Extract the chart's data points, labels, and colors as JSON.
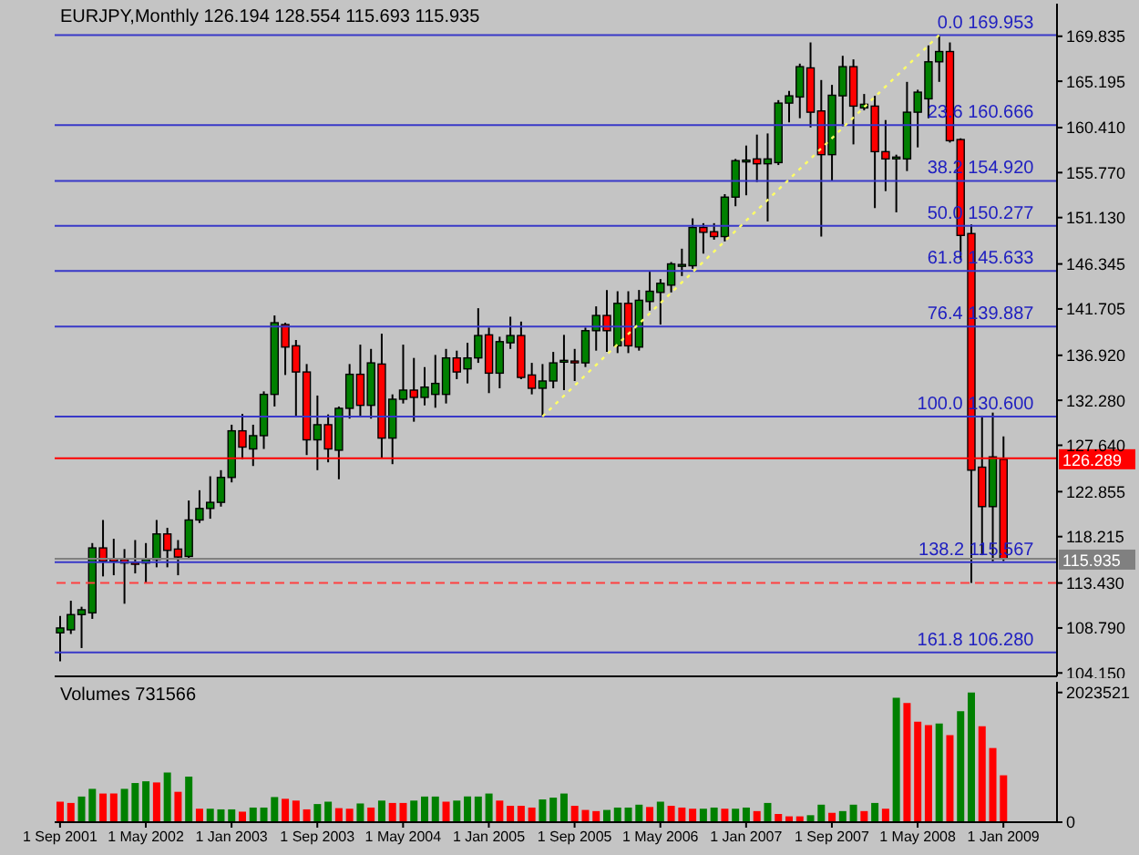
{
  "chart_data": [
    {
      "type": "candlestick",
      "title": "EURJPY,Monthly 126.194 128.554 115.693 115.935",
      "x": [
        "2001-09",
        "2001-10",
        "2001-11",
        "2001-12",
        "2002-01",
        "2002-02",
        "2002-03",
        "2002-04",
        "2002-05",
        "2002-06",
        "2002-07",
        "2002-08",
        "2002-09",
        "2002-10",
        "2002-11",
        "2002-12",
        "2003-01",
        "2003-02",
        "2003-03",
        "2003-04",
        "2003-05",
        "2003-06",
        "2003-07",
        "2003-08",
        "2003-09",
        "2003-10",
        "2003-11",
        "2003-12",
        "2004-01",
        "2004-02",
        "2004-03",
        "2004-04",
        "2004-05",
        "2004-06",
        "2004-07",
        "2004-08",
        "2004-09",
        "2004-10",
        "2004-11",
        "2004-12",
        "2005-01",
        "2005-02",
        "2005-03",
        "2005-04",
        "2005-05",
        "2005-06",
        "2005-07",
        "2005-08",
        "2005-09",
        "2005-10",
        "2005-11",
        "2005-12",
        "2006-01",
        "2006-02",
        "2006-03",
        "2006-04",
        "2006-05",
        "2006-06",
        "2006-07",
        "2006-08",
        "2006-09",
        "2006-10",
        "2006-11",
        "2006-12",
        "2007-01",
        "2007-02",
        "2007-03",
        "2007-04",
        "2007-05",
        "2007-06",
        "2007-07",
        "2007-08",
        "2007-09",
        "2007-10",
        "2007-11",
        "2007-12",
        "2008-01",
        "2008-02",
        "2008-03",
        "2008-04",
        "2008-05",
        "2008-06",
        "2008-07",
        "2008-08",
        "2008-09",
        "2008-10",
        "2008-11",
        "2008-12",
        "2009-01"
      ],
      "ohlc": [
        [
          108.29,
          110.04,
          105.35,
          108.79
        ],
        [
          108.6,
          111.6,
          108.17,
          110.17
        ],
        [
          110.17,
          110.98,
          106.72,
          110.67
        ],
        [
          110.35,
          117.55,
          109.73,
          117.05
        ],
        [
          117.05,
          119.93,
          114.11,
          115.67
        ],
        [
          115.92,
          117.99,
          114.23,
          115.67
        ],
        [
          115.86,
          116.93,
          111.29,
          115.49
        ],
        [
          115.55,
          117.86,
          114.42,
          115.5
        ],
        [
          115.49,
          117.55,
          113.43,
          115.86
        ],
        [
          115.86,
          119.93,
          115.05,
          118.49
        ],
        [
          118.49,
          119.12,
          115.05,
          116.8
        ],
        [
          116.93,
          117.86,
          114.23,
          116.11
        ],
        [
          116.17,
          121.94,
          115.92,
          119.93
        ],
        [
          119.93,
          123.0,
          119.62,
          121.12
        ],
        [
          121.12,
          124.44,
          120.06,
          121.75
        ],
        [
          121.75,
          125.07,
          121.31,
          124.32
        ],
        [
          124.32,
          129.76,
          123.81,
          129.13
        ],
        [
          129.13,
          130.89,
          126.19,
          127.45
        ],
        [
          127.26,
          129.76,
          125.5,
          128.63
        ],
        [
          128.63,
          133.2,
          127.26,
          132.89
        ],
        [
          132.89,
          141.03,
          131.64,
          140.28
        ],
        [
          140.09,
          140.28,
          134.89,
          137.77
        ],
        [
          137.9,
          138.5,
          130.51,
          135.2
        ],
        [
          135.2,
          136.02,
          126.63,
          128.2
        ],
        [
          128.2,
          132.77,
          125.07,
          129.76
        ],
        [
          129.76,
          130.82,
          125.88,
          127.26
        ],
        [
          127.13,
          131.64,
          124.13,
          131.45
        ],
        [
          131.45,
          136.02,
          130.39,
          134.96
        ],
        [
          134.96,
          138.02,
          130.51,
          131.76
        ],
        [
          131.76,
          137.58,
          130.39,
          136.14
        ],
        [
          136.02,
          139.15,
          126.32,
          128.38
        ],
        [
          128.38,
          132.89,
          125.69,
          132.39
        ],
        [
          132.39,
          138.02,
          131.95,
          133.33
        ],
        [
          133.33,
          136.65,
          130.07,
          132.58
        ],
        [
          132.58,
          135.71,
          131.76,
          133.64
        ],
        [
          132.89,
          136.96,
          131.51,
          134.02
        ],
        [
          132.89,
          137.58,
          131.95,
          136.65
        ],
        [
          136.65,
          137.4,
          134.46,
          135.2
        ],
        [
          135.52,
          138.21,
          134.02,
          136.65
        ],
        [
          136.65,
          141.78,
          136.14,
          138.96
        ],
        [
          139.03,
          139.78,
          133.02,
          135.08
        ],
        [
          135.08,
          138.84,
          133.52,
          138.33
        ],
        [
          138.21,
          140.9,
          137.58,
          138.96
        ],
        [
          138.96,
          140.4,
          134.46,
          134.64
        ],
        [
          134.89,
          136.14,
          132.89,
          133.52
        ],
        [
          133.52,
          136.02,
          130.6,
          134.27
        ],
        [
          134.27,
          137.27,
          133.52,
          136.14
        ],
        [
          136.27,
          139.03,
          133.33,
          136.4
        ],
        [
          136.33,
          137.58,
          134.27,
          136.27
        ],
        [
          136.14,
          139.78,
          135.71,
          139.46
        ],
        [
          139.46,
          141.97,
          137.4,
          141.03
        ],
        [
          141.03,
          143.66,
          137.27,
          139.46
        ],
        [
          137.9,
          143.53,
          137.15,
          142.28
        ],
        [
          142.28,
          143.53,
          137.15,
          137.9
        ],
        [
          137.77,
          143.66,
          137.4,
          142.6
        ],
        [
          142.47,
          145.54,
          141.53,
          143.53
        ],
        [
          143.41,
          144.79,
          140.09,
          144.35
        ],
        [
          144.16,
          146.54,
          143.41,
          146.35
        ],
        [
          146.16,
          147.92,
          145.1,
          146.29
        ],
        [
          146.16,
          151.05,
          145.85,
          150.11
        ],
        [
          150.11,
          150.55,
          147.41,
          149.61
        ],
        [
          149.67,
          150.55,
          148.85,
          149.17
        ],
        [
          149.17,
          153.55,
          148.67,
          153.24
        ],
        [
          153.24,
          157.18,
          152.3,
          157.0
        ],
        [
          156.93,
          158.56,
          153.43,
          157.06
        ],
        [
          157.18,
          159.69,
          154.8,
          156.68
        ],
        [
          156.68,
          159.81,
          150.73,
          157.18
        ],
        [
          156.8,
          163.25,
          156.55,
          162.94
        ],
        [
          162.94,
          164.19,
          160.94,
          163.69
        ],
        [
          163.57,
          167.01,
          161.38,
          166.7
        ],
        [
          166.57,
          169.2,
          160.43,
          162.0
        ],
        [
          162.13,
          165.32,
          149.17,
          157.62
        ],
        [
          157.62,
          164.82,
          154.93,
          163.75
        ],
        [
          163.69,
          167.82,
          160.56,
          166.7
        ],
        [
          166.7,
          167.45,
          158.68,
          162.63
        ],
        [
          162.44,
          163.88,
          162.19,
          162.82
        ],
        [
          162.63,
          163.69,
          152.11,
          157.93
        ],
        [
          157.93,
          161.19,
          153.86,
          157.18
        ],
        [
          157.24,
          157.62,
          151.67,
          157.37
        ],
        [
          157.18,
          165.13,
          155.93,
          162.0
        ],
        [
          162.0,
          164.32,
          158.37,
          164.07
        ],
        [
          163.38,
          168.89,
          161.38,
          167.2
        ],
        [
          167.2,
          169.953,
          165.13,
          168.26
        ],
        [
          168.26,
          169.2,
          158.87,
          159.06
        ],
        [
          159.18,
          159.31,
          146.79,
          149.29
        ],
        [
          149.48,
          150.42,
          113.43,
          125.07
        ],
        [
          125.38,
          130.7,
          116.3,
          121.31
        ],
        [
          121.31,
          131.01,
          115.67,
          126.44
        ],
        [
          126.194,
          128.554,
          115.693,
          115.935
        ]
      ],
      "colors": [
        "#008000",
        "#008000",
        "#008000",
        "#008000",
        "#ff0000",
        "#ff0000",
        "#ff0000",
        "#ff0000",
        "#008000",
        "#008000",
        "#ff0000",
        "#ff0000",
        "#008000",
        "#008000",
        "#008000",
        "#008000",
        "#008000",
        "#ff0000",
        "#008000",
        "#008000",
        "#008000",
        "#ff0000",
        "#ff0000",
        "#ff0000",
        "#008000",
        "#ff0000",
        "#008000",
        "#008000",
        "#ff0000",
        "#008000",
        "#ff0000",
        "#008000",
        "#008000",
        "#ff0000",
        "#008000",
        "#008000",
        "#008000",
        "#ff0000",
        "#008000",
        "#008000",
        "#ff0000",
        "#008000",
        "#008000",
        "#ff0000",
        "#ff0000",
        "#008000",
        "#008000",
        "#008000",
        "#ff0000",
        "#008000",
        "#008000",
        "#ff0000",
        "#008000",
        "#ff0000",
        "#008000",
        "#008000",
        "#008000",
        "#008000",
        "#008000",
        "#008000",
        "#ff0000",
        "#ff0000",
        "#008000",
        "#008000",
        "#008000",
        "#ff0000",
        "#008000",
        "#008000",
        "#008000",
        "#008000",
        "#ff0000",
        "#ff0000",
        "#008000",
        "#008000",
        "#ff0000",
        "#008000",
        "#ff0000",
        "#ff0000",
        "#008000",
        "#008000",
        "#008000",
        "#008000",
        "#008000",
        "#ff0000",
        "#ff0000",
        "#ff0000",
        "#ff0000",
        "#008000",
        "#ff0000"
      ],
      "series": [
        {
          "type": "line",
          "x": [
            "2005-06",
            "2008-07"
          ],
          "values": [
            130.6,
            169.953
          ],
          "color": "#ffff66",
          "line_style": "dotted"
        }
      ],
      "xlim": [
        "2001-08-16",
        "2009-06"
      ],
      "ylim": [
        103.8,
        173.2
      ],
      "yticks": [
        {
          "value": 104.15,
          "label": "104.150"
        },
        {
          "value": 108.79,
          "label": "108.790"
        },
        {
          "value": 113.43,
          "label": "113.430"
        },
        118.215,
        122.855,
        {
          "value": 127.64,
          "label": "127.640"
        },
        {
          "value": 132.28,
          "label": "132.280"
        },
        {
          "value": 136.92,
          "label": "136.920"
        },
        141.705,
        146.345,
        {
          "value": 151.13,
          "label": "151.130"
        },
        {
          "value": 155.77,
          "label": "155.770"
        },
        {
          "value": 160.41,
          "label": "160.410"
        },
        165.195,
        169.835
      ],
      "tick_labels": "y",
      "ref_lines": [
        {
          "axis": "y",
          "value": 169.953,
          "color": "#3838c8"
        },
        {
          "axis": "y",
          "value": 160.666,
          "color": "#3838c8"
        },
        {
          "axis": "y",
          "value": 154.92,
          "color": "#3838c8"
        },
        {
          "axis": "y",
          "value": 150.277,
          "color": "#3838c8"
        },
        {
          "axis": "y",
          "value": 145.633,
          "color": "#3838c8"
        },
        {
          "axis": "y",
          "value": 139.887,
          "color": "#3838c8"
        },
        {
          "axis": "y",
          "value": 130.6,
          "color": "#3838c8"
        },
        {
          "axis": "y",
          "value": 115.567,
          "color": "#3838c8"
        },
        {
          "axis": "y",
          "value": 106.28,
          "color": "#3838c8"
        },
        {
          "axis": "y",
          "value": 126.289,
          "label": "126.289",
          "color": "#ff0000"
        },
        {
          "axis": "y",
          "value": 115.935,
          "label": "115.935",
          "color": "#808080"
        },
        {
          "axis": "y",
          "value": 113.43,
          "color": "#ff4040",
          "line_style": "dashed"
        }
      ],
      "annotations": [
        {
          "text": "0.0 169.953",
          "x": "2009-04",
          "y": 169.953
        },
        {
          "text": "23.6 160.666",
          "x": "2009-04",
          "y": 160.666
        },
        {
          "text": "38.2 154.920",
          "x": "2009-04",
          "y": 154.92
        },
        {
          "text": "50.0 150.277",
          "x": "2009-04",
          "y": 150.277
        },
        {
          "text": "61.8 145.633",
          "x": "2009-04",
          "y": 145.633
        },
        {
          "text": "76.4 139.887",
          "x": "2009-04",
          "y": 139.887
        },
        {
          "text": "100.0 130.600",
          "x": "2009-04",
          "y": 130.6
        },
        {
          "text": "138.2 115.567",
          "x": "2009-04",
          "y": 115.567
        },
        {
          "text": "161.8 106.280",
          "x": "2009-04",
          "y": 106.28
        }
      ]
    },
    {
      "type": "bar",
      "title": "Volumes 731566",
      "x": [
        "2001-09",
        "2001-10",
        "2001-11",
        "2001-12",
        "2002-01",
        "2002-02",
        "2002-03",
        "2002-04",
        "2002-05",
        "2002-06",
        "2002-07",
        "2002-08",
        "2002-09",
        "2002-10",
        "2002-11",
        "2002-12",
        "2003-01",
        "2003-02",
        "2003-03",
        "2003-04",
        "2003-05",
        "2003-06",
        "2003-07",
        "2003-08",
        "2003-09",
        "2003-10",
        "2003-11",
        "2003-12",
        "2004-01",
        "2004-02",
        "2004-03",
        "2004-04",
        "2004-05",
        "2004-06",
        "2004-07",
        "2004-08",
        "2004-09",
        "2004-10",
        "2004-11",
        "2004-12",
        "2005-01",
        "2005-02",
        "2005-03",
        "2005-04",
        "2005-05",
        "2005-06",
        "2005-07",
        "2005-08",
        "2005-09",
        "2005-10",
        "2005-11",
        "2005-12",
        "2006-01",
        "2006-02",
        "2006-03",
        "2006-04",
        "2006-05",
        "2006-06",
        "2006-07",
        "2006-08",
        "2006-09",
        "2006-10",
        "2006-11",
        "2006-12",
        "2007-01",
        "2007-02",
        "2007-03",
        "2007-04",
        "2007-05",
        "2007-06",
        "2007-07",
        "2007-08",
        "2007-09",
        "2007-10",
        "2007-11",
        "2007-12",
        "2008-01",
        "2008-02",
        "2008-03",
        "2008-04",
        "2008-05",
        "2008-06",
        "2008-07",
        "2008-08",
        "2008-09",
        "2008-10",
        "2008-11",
        "2008-12",
        "2009-01"
      ],
      "values": [
        320000,
        300000,
        400000,
        520000,
        447000,
        447000,
        520000,
        611000,
        638000,
        620000,
        775000,
        474000,
        711000,
        210000,
        210000,
        200000,
        200000,
        164000,
        228000,
        228000,
        392000,
        365000,
        337000,
        200000,
        283000,
        320000,
        219000,
        210000,
        292000,
        228000,
        337000,
        300000,
        300000,
        337000,
        400000,
        400000,
        320000,
        337000,
        400000,
        400000,
        447000,
        337000,
        255000,
        255000,
        228000,
        355000,
        383000,
        447000,
        255000,
        191000,
        173000,
        191000,
        228000,
        228000,
        273000,
        237000,
        320000,
        255000,
        228000,
        210000,
        210000,
        228000,
        210000,
        210000,
        228000,
        173000,
        300000,
        128000,
        91000,
        91000,
        109000,
        273000,
        146000,
        173000,
        273000,
        173000,
        300000,
        210000,
        1941000,
        1859000,
        1568000,
        1513000,
        1540000,
        1358000,
        1732000,
        2023521,
        1495000,
        1157000,
        731566
      ],
      "colors": [
        "#ff0000",
        "#ff0000",
        "#008000",
        "#008000",
        "#ff0000",
        "#ff0000",
        "#008000",
        "#008000",
        "#008000",
        "#ff0000",
        "#008000",
        "#ff0000",
        "#008000",
        "#ff0000",
        "#008000",
        "#008000",
        "#008000",
        "#ff0000",
        "#008000",
        "#008000",
        "#008000",
        "#ff0000",
        "#ff0000",
        "#ff0000",
        "#008000",
        "#008000",
        "#ff0000",
        "#ff0000",
        "#008000",
        "#ff0000",
        "#008000",
        "#ff0000",
        "#ff0000",
        "#008000",
        "#008000",
        "#008000",
        "#ff0000",
        "#008000",
        "#008000",
        "#008000",
        "#008000",
        "#ff0000",
        "#ff0000",
        "#ff0000",
        "#ff0000",
        "#008000",
        "#008000",
        "#008000",
        "#ff0000",
        "#ff0000",
        "#ff0000",
        "#008000",
        "#008000",
        "#008000",
        "#008000",
        "#ff0000",
        "#008000",
        "#ff0000",
        "#ff0000",
        "#ff0000",
        "#008000",
        "#008000",
        "#ff0000",
        "#008000",
        "#008000",
        "#ff0000",
        "#008000",
        "#ff0000",
        "#ff0000",
        "#ff0000",
        "#008000",
        "#008000",
        "#ff0000",
        "#008000",
        "#008000",
        "#ff0000",
        "#008000",
        "#ff0000",
        "#008000",
        "#ff0000",
        "#ff0000",
        "#ff0000",
        "#008000",
        "#ff0000",
        "#008000",
        "#008000",
        "#ff0000",
        "#ff0000",
        "#ff0000"
      ],
      "xlim": [
        "2001-08-16",
        "2009-06"
      ],
      "xticks": [
        {
          "value": "2001-09",
          "label": "1 Sep 2001"
        },
        {
          "value": "2002-05",
          "label": "1 May 2002"
        },
        {
          "value": "2003-01",
          "label": "1 Jan 2003"
        },
        {
          "value": "2003-09",
          "label": "1 Sep 2003"
        },
        {
          "value": "2004-05",
          "label": "1 May 2004"
        },
        {
          "value": "2005-01",
          "label": "1 Jan 2005"
        },
        {
          "value": "2005-09",
          "label": "1 Sep 2005"
        },
        {
          "value": "2006-05",
          "label": "1 May 2006"
        },
        {
          "value": "2007-01",
          "label": "1 Jan 2007"
        },
        {
          "value": "2007-09",
          "label": "1 Sep 2007"
        },
        {
          "value": "2008-05",
          "label": "1 May 2008"
        },
        {
          "value": "2009-01",
          "label": "1 Jan 2009"
        }
      ],
      "ylim": [
        0,
        2190000
      ],
      "yticks": [
        0,
        2023521
      ]
    }
  ]
}
